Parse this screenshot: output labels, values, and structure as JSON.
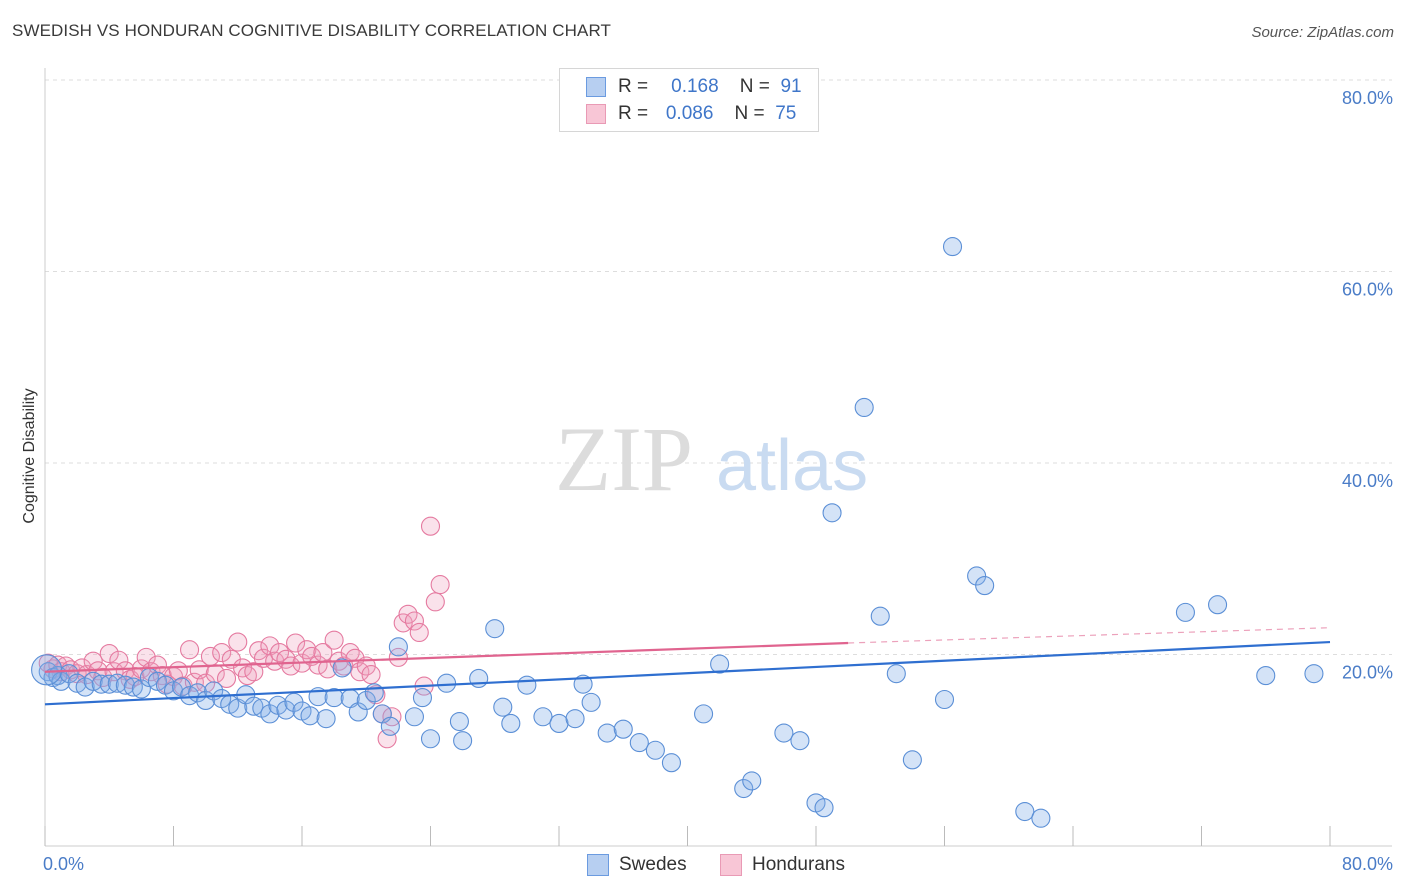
{
  "title": "SWEDISH VS HONDURAN COGNITIVE DISABILITY CORRELATION CHART",
  "source": "Source: ZipAtlas.com",
  "watermark": {
    "zip": "ZIP",
    "atlas": "atlas"
  },
  "colors": {
    "blue": "#5b8fd6",
    "blue_fill": "rgba(133,175,232,0.35)",
    "blue_line": "#2f6fd0",
    "pink": "#e57aa0",
    "pink_fill": "rgba(240,160,190,0.30)",
    "pink_line": "#e0648f"
  },
  "legend": {
    "rows": [
      {
        "r_label": "R =",
        "r_value": "0.168",
        "n_label": "N =",
        "n_value": "91"
      },
      {
        "r_label": "R =",
        "r_value": "0.086",
        "n_label": "N =",
        "n_value": "75"
      }
    ]
  },
  "bottom_legend": {
    "series1": "Swedes",
    "series2": "Hondurans"
  },
  "chart_data": {
    "type": "scatter",
    "title": "SWEDISH VS HONDURAN COGNITIVE DISABILITY CORRELATION CHART",
    "xlabel": "",
    "ylabel": "Cognitive Disability",
    "xlim": [
      0,
      80
    ],
    "ylim": [
      0,
      80
    ],
    "x_tick_labels": [
      "0.0%",
      "80.0%"
    ],
    "y_tick_labels": [
      "20.0%",
      "40.0%",
      "60.0%",
      "80.0%"
    ],
    "y_ticks": [
      20,
      40,
      60,
      80
    ],
    "grid": "horizontal dashed",
    "legend_position": "top-center",
    "series": [
      {
        "name": "Swedes",
        "trend": {
          "x": [
            0,
            80
          ],
          "y": [
            14.8,
            21.3
          ]
        },
        "points": [
          [
            0.2,
            18.2
          ],
          [
            0.5,
            17.6
          ],
          [
            0.8,
            17.8
          ],
          [
            1,
            17.2
          ],
          [
            1.5,
            18
          ],
          [
            2,
            17
          ],
          [
            2.5,
            16.6
          ],
          [
            3,
            17.2
          ],
          [
            3.5,
            16.9
          ],
          [
            4,
            16.9
          ],
          [
            4.5,
            17
          ],
          [
            5,
            16.8
          ],
          [
            5.5,
            16.6
          ],
          [
            6,
            16.4
          ],
          [
            6.5,
            17.6
          ],
          [
            7,
            17.2
          ],
          [
            7.5,
            16.8
          ],
          [
            8,
            16.2
          ],
          [
            8.5,
            16.6
          ],
          [
            9,
            15.7
          ],
          [
            9.5,
            16
          ],
          [
            10,
            15.2
          ],
          [
            10.5,
            16.2
          ],
          [
            11,
            15.4
          ],
          [
            11.5,
            14.8
          ],
          [
            12,
            14.4
          ],
          [
            12.5,
            15.8
          ],
          [
            13,
            14.6
          ],
          [
            13.5,
            14.4
          ],
          [
            14,
            13.8
          ],
          [
            14.5,
            14.7
          ],
          [
            15,
            14.2
          ],
          [
            15.5,
            15
          ],
          [
            16,
            14.1
          ],
          [
            16.5,
            13.6
          ],
          [
            17,
            15.6
          ],
          [
            17.5,
            13.3
          ],
          [
            18,
            15.5
          ],
          [
            18.5,
            18.6
          ],
          [
            19,
            15.4
          ],
          [
            19.5,
            14
          ],
          [
            20,
            15.2
          ],
          [
            20.5,
            16
          ],
          [
            21,
            13.8
          ],
          [
            21.5,
            12.5
          ],
          [
            22,
            20.8
          ],
          [
            23,
            13.5
          ],
          [
            23.5,
            15.5
          ],
          [
            24,
            11.2
          ],
          [
            25,
            17
          ],
          [
            25.8,
            13
          ],
          [
            26,
            11
          ],
          [
            27,
            17.5
          ],
          [
            28,
            22.7
          ],
          [
            28.5,
            14.5
          ],
          [
            29,
            12.8
          ],
          [
            30,
            16.8
          ],
          [
            31,
            13.5
          ],
          [
            32,
            12.8
          ],
          [
            33,
            13.3
          ],
          [
            33.5,
            16.9
          ],
          [
            34,
            15
          ],
          [
            35,
            11.8
          ],
          [
            36,
            12.2
          ],
          [
            37,
            10.8
          ],
          [
            38,
            10
          ],
          [
            39,
            8.7
          ],
          [
            41,
            13.8
          ],
          [
            42,
            19
          ],
          [
            43.5,
            6
          ],
          [
            44,
            6.8
          ],
          [
            46,
            11.8
          ],
          [
            47,
            11
          ],
          [
            48,
            4.5
          ],
          [
            48.5,
            4
          ],
          [
            49,
            34.8
          ],
          [
            51,
            45.8
          ],
          [
            52,
            24
          ],
          [
            53,
            18
          ],
          [
            54,
            9
          ],
          [
            56,
            15.3
          ],
          [
            56.5,
            62.6
          ],
          [
            58,
            28.2
          ],
          [
            58.5,
            27.2
          ],
          [
            61,
            3.6
          ],
          [
            62,
            2.9
          ],
          [
            71,
            24.4
          ],
          [
            73,
            25.2
          ],
          [
            76,
            17.8
          ],
          [
            79,
            18
          ],
          [
            0.1,
            18.4
          ]
        ]
      },
      {
        "name": "Hondurans",
        "trend": {
          "x": [
            0,
            50,
            80
          ],
          "y": [
            18.2,
            21.2,
            22.8
          ]
        },
        "points": [
          [
            0.2,
            19.1
          ],
          [
            0.5,
            18.5
          ],
          [
            0.8,
            18.9
          ],
          [
            1,
            18.2
          ],
          [
            1.3,
            18.8
          ],
          [
            1.6,
            18.4
          ],
          [
            2,
            18
          ],
          [
            2.3,
            18.6
          ],
          [
            2.6,
            17.9
          ],
          [
            3,
            19.3
          ],
          [
            3.3,
            18.3
          ],
          [
            3.6,
            17.6
          ],
          [
            4,
            20.1
          ],
          [
            4.3,
            18.2
          ],
          [
            4.6,
            19.4
          ],
          [
            5,
            18.3
          ],
          [
            5.3,
            17.4
          ],
          [
            5.6,
            17.7
          ],
          [
            6,
            18.5
          ],
          [
            6.3,
            19.7
          ],
          [
            6.6,
            18.2
          ],
          [
            7,
            18.9
          ],
          [
            7.3,
            17.8
          ],
          [
            7.6,
            16.9
          ],
          [
            8,
            17.7
          ],
          [
            8.3,
            18.3
          ],
          [
            8.6,
            16.7
          ],
          [
            9,
            20.5
          ],
          [
            9.3,
            17.1
          ],
          [
            9.6,
            18.4
          ],
          [
            10,
            17
          ],
          [
            10.3,
            19.8
          ],
          [
            10.6,
            18
          ],
          [
            11,
            20.2
          ],
          [
            11.3,
            17.5
          ],
          [
            11.6,
            19.5
          ],
          [
            12,
            21.3
          ],
          [
            12.3,
            18.6
          ],
          [
            12.6,
            17.8
          ],
          [
            13,
            18.2
          ],
          [
            13.3,
            20.4
          ],
          [
            13.6,
            19.6
          ],
          [
            14,
            20.9
          ],
          [
            14.3,
            19.3
          ],
          [
            14.6,
            20.2
          ],
          [
            15,
            19.5
          ],
          [
            15.3,
            18.8
          ],
          [
            15.6,
            21.2
          ],
          [
            16,
            19.1
          ],
          [
            16.3,
            20.5
          ],
          [
            16.6,
            19.8
          ],
          [
            17,
            18.9
          ],
          [
            17.3,
            20.2
          ],
          [
            17.6,
            18.5
          ],
          [
            18,
            21.5
          ],
          [
            18.3,
            19.3
          ],
          [
            18.6,
            18.8
          ],
          [
            19,
            20.2
          ],
          [
            19.3,
            19.6
          ],
          [
            19.6,
            18.2
          ],
          [
            20,
            18.8
          ],
          [
            20.3,
            17.9
          ],
          [
            20.6,
            15.8
          ],
          [
            21,
            13.8
          ],
          [
            21.3,
            11.2
          ],
          [
            21.6,
            13.5
          ],
          [
            22,
            19.7
          ],
          [
            22.3,
            23.3
          ],
          [
            22.6,
            24.2
          ],
          [
            23,
            23.5
          ],
          [
            23.3,
            22.3
          ],
          [
            23.6,
            16.7
          ],
          [
            24,
            33.4
          ],
          [
            24.3,
            25.5
          ],
          [
            24.6,
            27.3
          ]
        ]
      }
    ]
  }
}
